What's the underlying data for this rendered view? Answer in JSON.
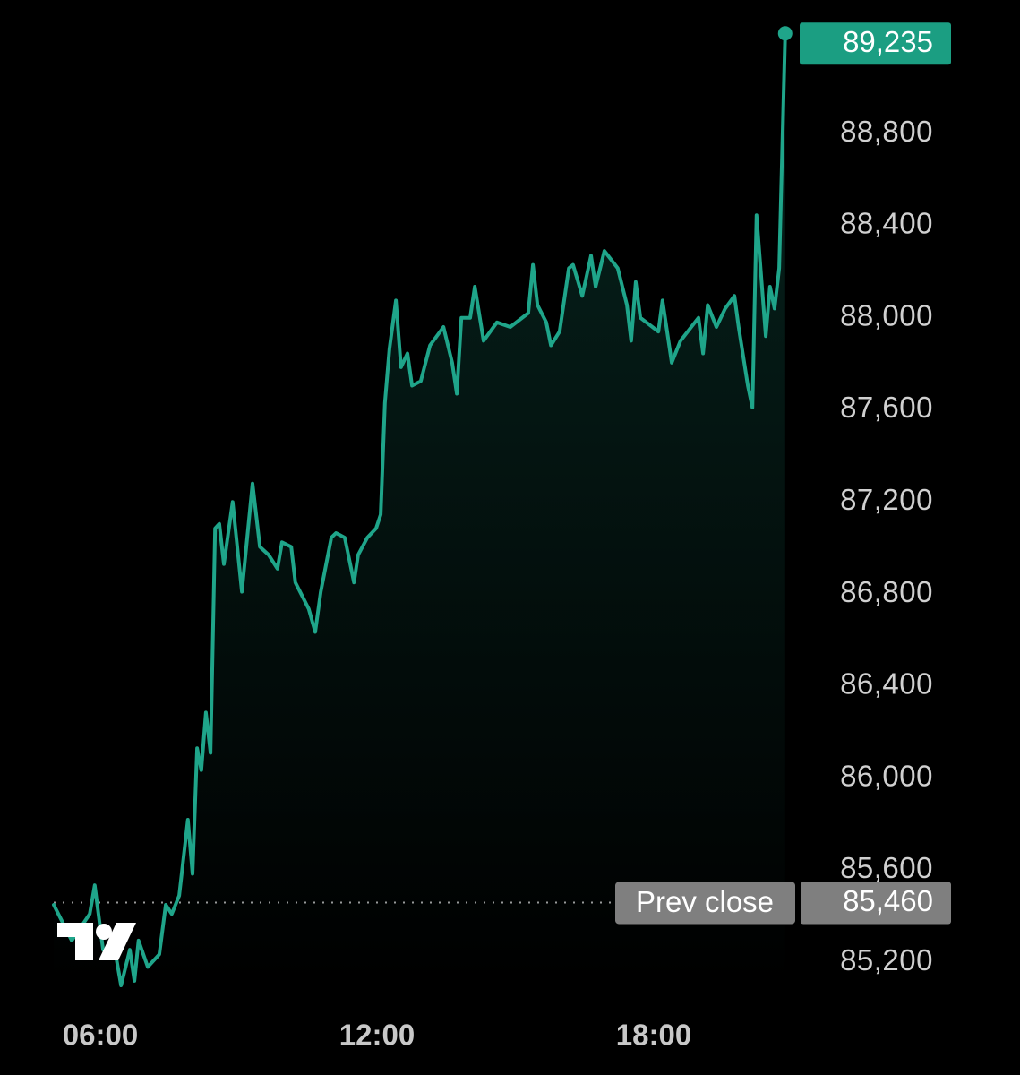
{
  "chart_data": {
    "type": "line",
    "color": "#1fa58a",
    "x": [
      4.99,
      5.38,
      5.77,
      5.88,
      6.06,
      6.35,
      6.45,
      6.64,
      6.74,
      6.83,
      7.03,
      7.28,
      7.42,
      7.55,
      7.71,
      7.9,
      8.0,
      8.1,
      8.19,
      8.29,
      8.39,
      8.49,
      8.58,
      8.68,
      8.87,
      9.07,
      9.3,
      9.46,
      9.65,
      9.84,
      9.94,
      10.14,
      10.23,
      10.52,
      10.66,
      10.78,
      11.01,
      11.11,
      11.3,
      11.5,
      11.59,
      11.79,
      11.98,
      12.08,
      12.17,
      12.27,
      12.41,
      12.52,
      12.66,
      12.76,
      12.95,
      13.15,
      13.44,
      13.63,
      13.73,
      13.83,
      14.02,
      14.12,
      14.31,
      14.6,
      14.89,
      15.28,
      15.38,
      15.48,
      15.67,
      15.77,
      15.96,
      16.16,
      16.25,
      16.45,
      16.64,
      16.74,
      16.93,
      17.22,
      17.42,
      17.51,
      17.61,
      17.71,
      18.1,
      18.19,
      18.39,
      18.58,
      18.97,
      19.07,
      19.17,
      19.36,
      19.55,
      19.75,
      19.84,
      20.04,
      20.14,
      20.23,
      20.43,
      20.52,
      20.62,
      20.72,
      20.85
    ],
    "values": [
      85450,
      85295,
      85410,
      85535,
      85255,
      85215,
      85100,
      85255,
      85120,
      85295,
      85180,
      85235,
      85450,
      85410,
      85490,
      85820,
      85585,
      86130,
      86035,
      86285,
      86110,
      87085,
      87105,
      86930,
      87200,
      86810,
      87280,
      87005,
      86970,
      86910,
      87025,
      87005,
      86850,
      86735,
      86635,
      86810,
      87045,
      87065,
      87045,
      86850,
      86970,
      87045,
      87085,
      87145,
      87630,
      87865,
      88075,
      87785,
      87845,
      87705,
      87725,
      87880,
      87960,
      87805,
      87670,
      88000,
      88000,
      88135,
      87900,
      87980,
      87960,
      88020,
      88230,
      88055,
      87980,
      87880,
      87940,
      88215,
      88230,
      88095,
      88270,
      88135,
      88290,
      88215,
      88055,
      87900,
      88155,
      88000,
      87940,
      88075,
      87805,
      87900,
      88000,
      87845,
      88055,
      87960,
      88040,
      88095,
      87960,
      87705,
      87610,
      88445,
      87920,
      88135,
      88040,
      88215,
      89235
    ],
    "xlim": [
      4,
      22
    ],
    "xticks": [
      {
        "value": 6,
        "label": "06:00"
      },
      {
        "value": 12,
        "label": "12:00"
      },
      {
        "value": 18,
        "label": "18:00"
      }
    ],
    "ylim": [
      85100,
      89380
    ],
    "yticks": [
      {
        "value": 85200,
        "label": "85,200"
      },
      {
        "value": 85600,
        "label": "85,600"
      },
      {
        "value": 86000,
        "label": "86,000"
      },
      {
        "value": 86400,
        "label": "86,400"
      },
      {
        "value": 86800,
        "label": "86,800"
      },
      {
        "value": 87200,
        "label": "87,200"
      },
      {
        "value": 87600,
        "label": "87,600"
      },
      {
        "value": 88000,
        "label": "88,000"
      },
      {
        "value": 88400,
        "label": "88,400"
      },
      {
        "value": 88800,
        "label": "88,800"
      }
    ],
    "last_price": {
      "value": 89235,
      "label": "89,235",
      "color": "#1b9e82"
    },
    "prev_close": {
      "name": "Prev close",
      "value": 85460,
      "label": "85,460",
      "color": "#7f7f7f"
    }
  }
}
